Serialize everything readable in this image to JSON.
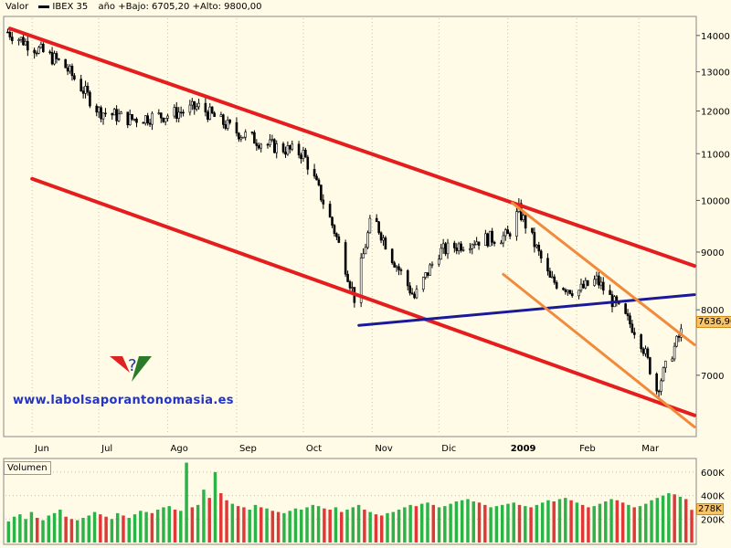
{
  "header": {
    "label": "Valor",
    "symbol": "IBEX 35",
    "range": "año +Bajo: 6705,20 +Alto: 9800,00"
  },
  "watermark": "www.labolsaporantonomasia.es",
  "price_tag": "7636,90",
  "volume_label": "Volumen",
  "volume_tag": "278K",
  "colors": {
    "bull": "#2bb34a",
    "bear": "#e03838",
    "channel": "#e41e1e",
    "support": "#1a1a99",
    "sub_channel": "#f28a3c",
    "background": "#fffbe6"
  },
  "chart_data": [
    {
      "type": "candlestick",
      "title": "IBEX 35",
      "ylim": [
        6200,
        14500
      ],
      "y_ticks": [
        7000,
        8000,
        9000,
        10000,
        11000,
        12000,
        13000,
        14000
      ],
      "x_ticks": [
        {
          "label": "Jun",
          "date": "2008-06-01"
        },
        {
          "label": "Jul",
          "date": "2008-07-01"
        },
        {
          "label": "Ago",
          "date": "2008-08-01"
        },
        {
          "label": "Sep",
          "date": "2008-09-01"
        },
        {
          "label": "Oct",
          "date": "2008-10-01"
        },
        {
          "label": "Nov",
          "date": "2008-11-01"
        },
        {
          "label": "Dic",
          "date": "2008-12-01"
        },
        {
          "label": "2009",
          "date": "2009-01-01"
        },
        {
          "label": "Feb",
          "date": "2009-02-01"
        },
        {
          "label": "Mar",
          "date": "2009-03-01"
        }
      ],
      "grid": true,
      "dates": [
        "2008-05-21",
        "2008-06-01",
        "2008-06-15",
        "2008-07-01",
        "2008-07-15",
        "2008-08-01",
        "2008-08-15",
        "2008-09-01",
        "2008-09-15",
        "2008-10-01",
        "2008-10-08",
        "2008-10-15",
        "2008-10-24",
        "2008-11-01",
        "2008-11-10",
        "2008-11-20",
        "2008-12-01",
        "2008-12-15",
        "2009-01-01",
        "2009-01-06",
        "2009-01-20",
        "2009-02-01",
        "2009-02-10",
        "2009-02-20",
        "2009-03-01",
        "2009-03-09",
        "2009-03-20"
      ],
      "close": [
        14100,
        13700,
        13200,
        12000,
        11800,
        11900,
        12100,
        11500,
        11200,
        11000,
        10200,
        9400,
        8200,
        9700,
        8900,
        8200,
        9000,
        9200,
        9300,
        9800,
        8500,
        8300,
        8500,
        8000,
        7600,
        6800,
        7636.9
      ],
      "trendlines": [
        {
          "from": {
            "date": "2008-05-22",
            "value": 14200
          },
          "to": {
            "date": "2009-03-26",
            "value": 8750
          }
        },
        {
          "from": {
            "date": "2008-06-01",
            "value": 10450
          },
          "to": {
            "date": "2009-03-26",
            "value": 6450
          }
        },
        {
          "from": {
            "date": "2008-10-26",
            "value": 7750
          },
          "to": {
            "date": "2009-03-26",
            "value": 8250
          }
        },
        {
          "from": {
            "date": "2009-01-03",
            "value": 9950
          },
          "to": {
            "date": "2009-03-26",
            "value": 7450
          }
        },
        {
          "from": {
            "date": "2008-12-30",
            "value": 8600
          },
          "to": {
            "date": "2009-03-26",
            "value": 6300
          }
        }
      ]
    },
    {
      "type": "bar",
      "title": "Volumen",
      "ylim": [
        0,
        700
      ],
      "y_ticks": [
        "200K",
        "400K",
        "600K"
      ],
      "grid": true,
      "values": [
        180,
        220,
        240,
        200,
        260,
        210,
        190,
        230,
        250,
        280,
        220,
        200,
        190,
        210,
        230,
        260,
        240,
        220,
        200,
        250,
        230,
        210,
        240,
        270,
        260,
        250,
        280,
        300,
        310,
        280,
        270,
        680,
        300,
        320,
        450,
        380,
        600,
        420,
        360,
        330,
        310,
        300,
        280,
        320,
        300,
        290,
        270,
        260,
        250,
        270,
        290,
        280,
        300,
        320,
        310,
        290,
        280,
        300,
        260,
        280,
        300,
        320,
        280,
        260,
        240,
        230,
        250,
        260,
        280,
        300,
        320,
        310,
        330,
        340,
        320,
        300,
        310,
        330,
        350,
        360,
        370,
        350,
        340,
        320,
        300,
        310,
        320,
        330,
        340,
        320,
        310,
        300,
        320,
        340,
        360,
        350,
        370,
        380,
        360,
        340,
        320,
        300,
        310,
        330,
        350,
        370,
        360,
        340,
        320,
        300,
        310,
        330,
        360,
        380,
        400,
        420,
        410,
        390,
        370,
        278
      ]
    }
  ]
}
